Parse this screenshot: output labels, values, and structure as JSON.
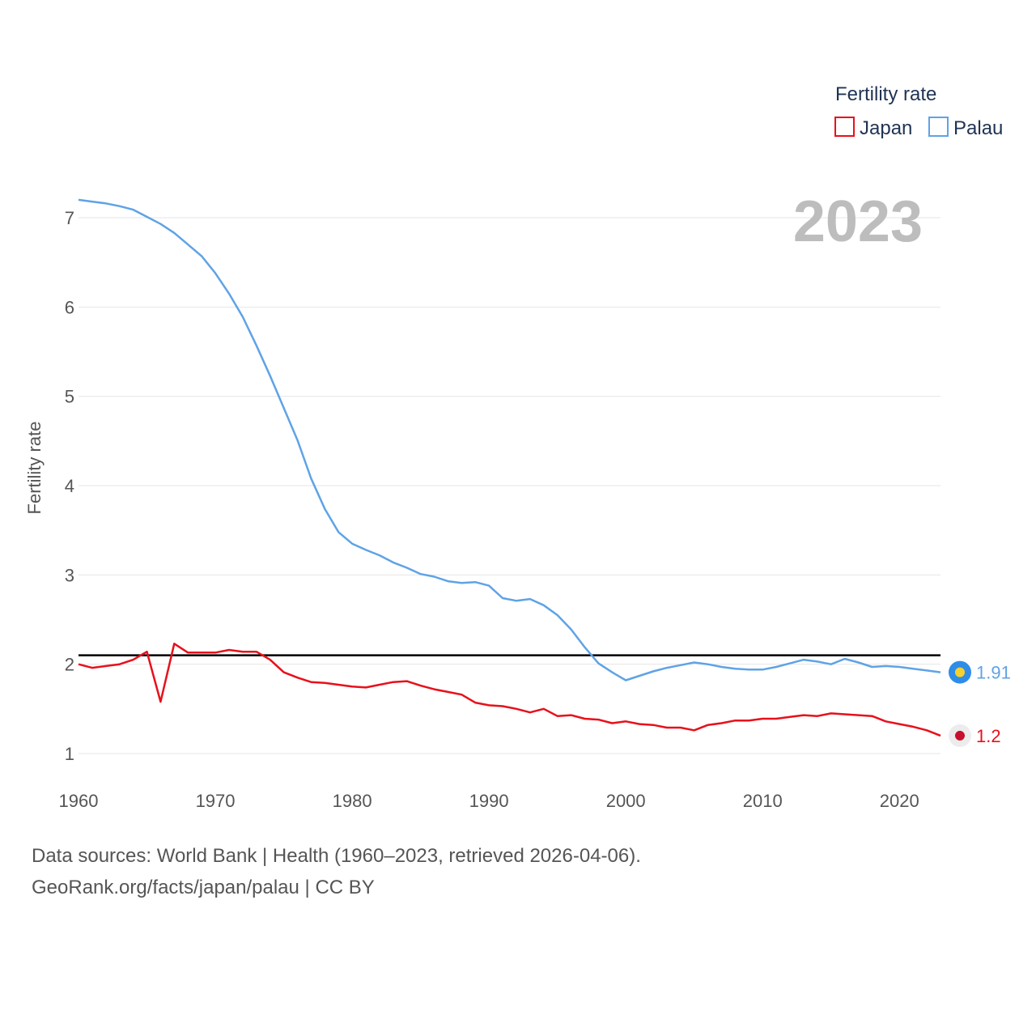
{
  "chart_data": {
    "type": "line",
    "ylabel": "Fertility rate",
    "legend_title": "Fertility rate",
    "current_year": "2023",
    "xlim": [
      1960,
      2023
    ],
    "ylim": [
      0.7,
      7.5
    ],
    "x_ticks": [
      1960,
      1970,
      1980,
      1990,
      2000,
      2010,
      2020
    ],
    "y_ticks": [
      1,
      2,
      3,
      4,
      5,
      6,
      7
    ],
    "reference_line": 2.1,
    "x": [
      1960,
      1961,
      1962,
      1963,
      1964,
      1965,
      1966,
      1967,
      1968,
      1969,
      1970,
      1971,
      1972,
      1973,
      1974,
      1975,
      1976,
      1977,
      1978,
      1979,
      1980,
      1981,
      1982,
      1983,
      1984,
      1985,
      1986,
      1987,
      1988,
      1989,
      1990,
      1991,
      1992,
      1993,
      1994,
      1995,
      1996,
      1997,
      1998,
      1999,
      2000,
      2001,
      2002,
      2003,
      2004,
      2005,
      2006,
      2007,
      2008,
      2009,
      2010,
      2011,
      2012,
      2013,
      2014,
      2015,
      2016,
      2017,
      2018,
      2019,
      2020,
      2021,
      2022,
      2023
    ],
    "series": [
      {
        "name": "Japan",
        "color": "#e8101a",
        "end_label": "1.2",
        "marker_fill": "#c8102e",
        "values": [
          2.0,
          1.96,
          1.98,
          2.0,
          2.05,
          2.14,
          1.58,
          2.23,
          2.13,
          2.13,
          2.13,
          2.16,
          2.14,
          2.14,
          2.05,
          1.91,
          1.85,
          1.8,
          1.79,
          1.77,
          1.75,
          1.74,
          1.77,
          1.8,
          1.81,
          1.76,
          1.72,
          1.69,
          1.66,
          1.57,
          1.54,
          1.53,
          1.5,
          1.46,
          1.5,
          1.42,
          1.43,
          1.39,
          1.38,
          1.34,
          1.36,
          1.33,
          1.32,
          1.29,
          1.29,
          1.26,
          1.32,
          1.34,
          1.37,
          1.37,
          1.39,
          1.39,
          1.41,
          1.43,
          1.42,
          1.45,
          1.44,
          1.43,
          1.42,
          1.36,
          1.33,
          1.3,
          1.26,
          1.2
        ]
      },
      {
        "name": "Palau",
        "color": "#5fa3e6",
        "end_label": "1.91",
        "marker_fill": "#f5d130",
        "values": [
          7.2,
          7.18,
          7.16,
          7.13,
          7.09,
          7.01,
          6.93,
          6.83,
          6.7,
          6.57,
          6.38,
          6.15,
          5.89,
          5.57,
          5.23,
          4.87,
          4.51,
          4.08,
          3.74,
          3.48,
          3.35,
          3.28,
          3.22,
          3.14,
          3.08,
          3.01,
          2.98,
          2.93,
          2.91,
          2.92,
          2.88,
          2.74,
          2.71,
          2.73,
          2.66,
          2.55,
          2.39,
          2.19,
          2.01,
          1.91,
          1.82,
          1.87,
          1.92,
          1.96,
          1.99,
          2.02,
          2.0,
          1.97,
          1.95,
          1.94,
          1.94,
          1.97,
          2.01,
          2.05,
          2.03,
          2.0,
          2.06,
          2.02,
          1.97,
          1.98,
          1.97,
          1.95,
          1.93,
          1.91
        ]
      }
    ]
  },
  "footer": {
    "line1": "Data sources: World Bank | Health (1960–2023, retrieved 2026-04-06).",
    "line2": "GeoRank.org/facts/japan/palau | CC BY"
  },
  "colors": {
    "grid": "#e6e6e6",
    "reference": "#000000",
    "palau_marker_ring": "#2f8de8",
    "japan_marker_ring": "#ececec"
  }
}
